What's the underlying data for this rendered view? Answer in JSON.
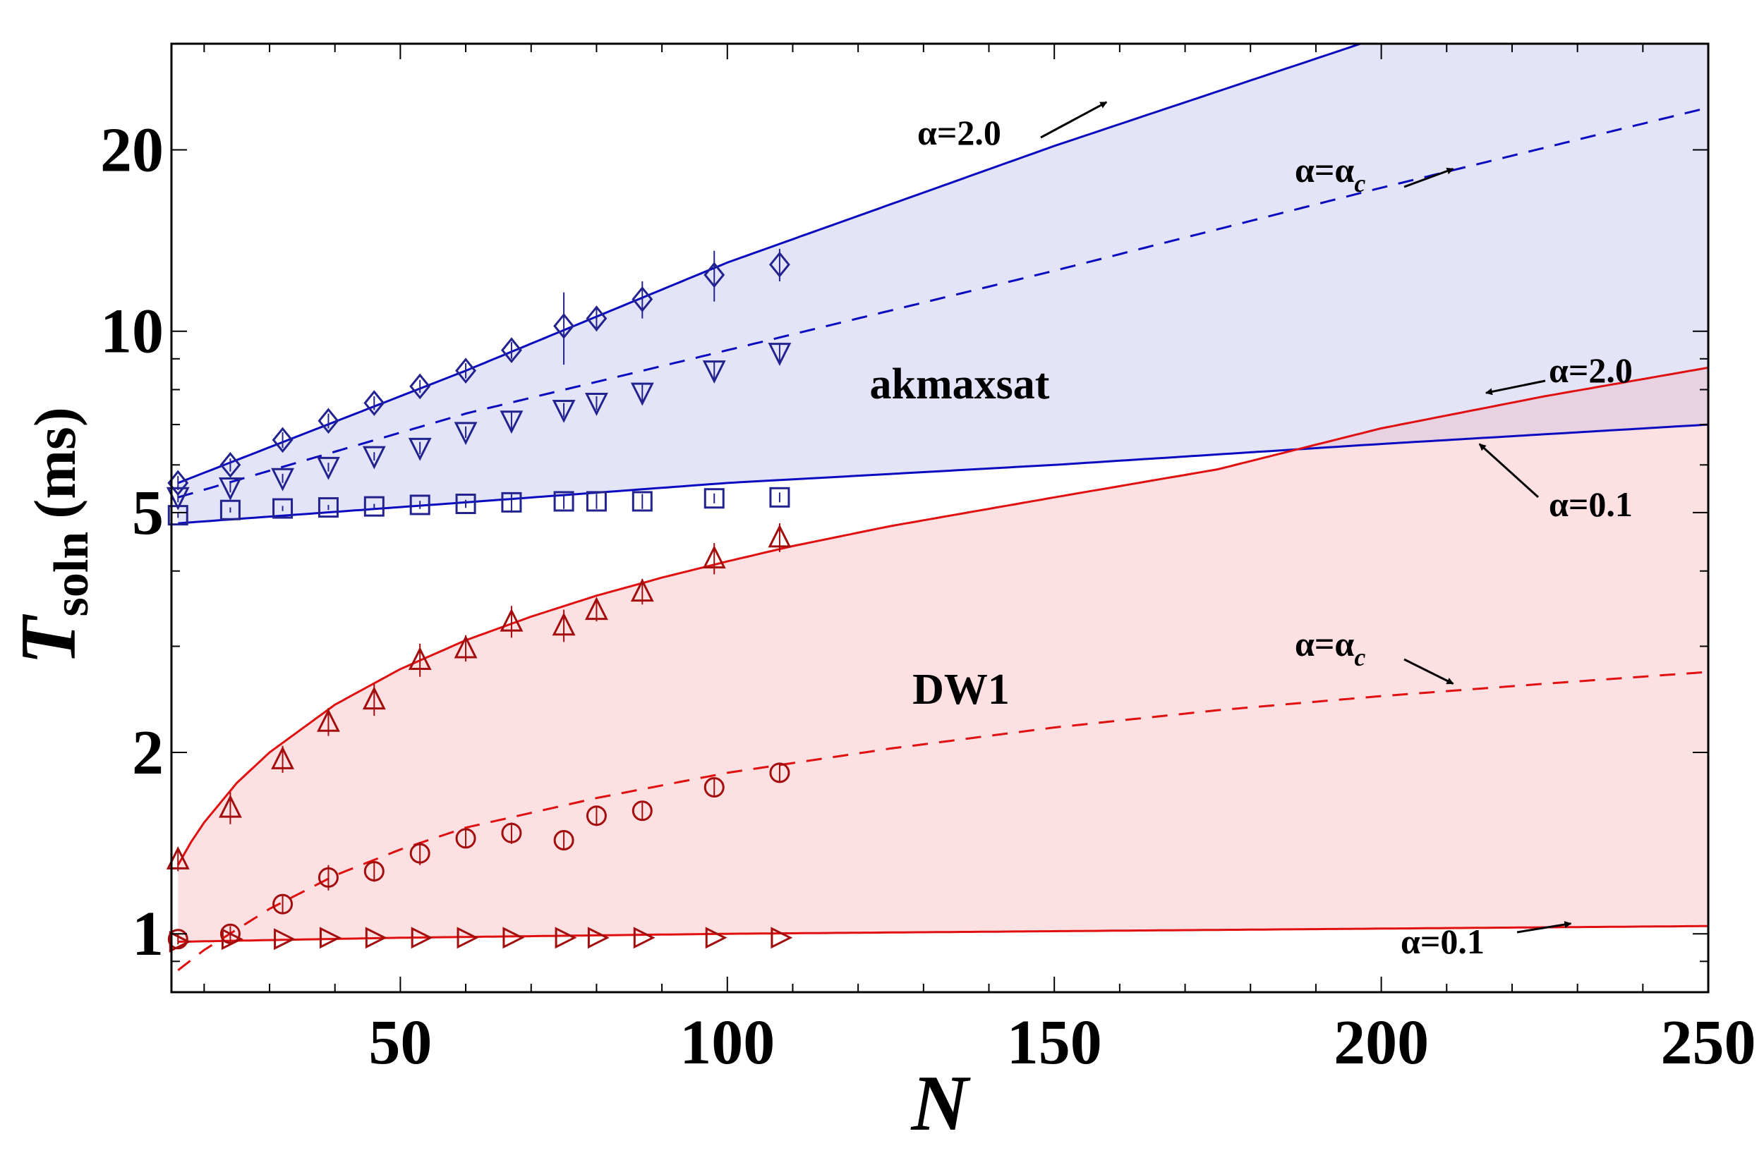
{
  "chart_data": {
    "type": "line",
    "title": "",
    "xlabel": "N",
    "ylabel_main": "T",
    "ylabel_sub": "soln",
    "ylabel_unit": "(ms)",
    "xlim": [
      15,
      250
    ],
    "ylim": [
      0.8,
      30
    ],
    "yscale": "log",
    "grid": false,
    "x_ticks": [
      50,
      100,
      150,
      200,
      250
    ],
    "x_tick_labels": [
      "50",
      "100",
      "150",
      "200",
      "250"
    ],
    "y_ticks": [
      1,
      2,
      5,
      10,
      20
    ],
    "y_tick_labels": [
      "1",
      "2",
      "5",
      "10",
      "20"
    ],
    "band_labels": {
      "akmaxsat": "akmaxsat",
      "dw1": "DW1"
    },
    "colors": {
      "blue": "#0a0ac0",
      "dark_blue": "#23238f",
      "blue_fill": "#e3e4f8",
      "red": "#e01010",
      "dark_red": "#a30d0d",
      "red_fill": "#fde0e2",
      "overlap_fill": "#e8d2e2"
    },
    "fits": [
      {
        "name": "akmaxsat alpha=2.0",
        "x": [
          16,
          60,
          100,
          150,
          200,
          250
        ],
        "y": [
          5.6,
          8.6,
          13.0,
          20.3,
          30.8,
          46.5
        ],
        "style": "solid",
        "color": "blue"
      },
      {
        "name": "akmaxsat alpha=alpha_c",
        "x": [
          16,
          60,
          100,
          150,
          200,
          250
        ],
        "y": [
          5.3,
          7.3,
          9.3,
          12.6,
          17.3,
          23.5
        ],
        "style": "dashed",
        "color": "blue"
      },
      {
        "name": "akmaxsat alpha=0.1",
        "x": [
          16,
          60,
          100,
          150,
          200,
          250
        ],
        "y": [
          4.8,
          5.2,
          5.6,
          6.0,
          6.5,
          7.0
        ],
        "style": "solid",
        "color": "blue"
      },
      {
        "name": "DW1 alpha=2.0",
        "x": [
          16,
          18,
          20,
          25,
          30,
          40,
          50,
          60,
          70,
          80,
          90,
          100,
          110,
          125,
          150,
          175,
          200,
          225,
          250
        ],
        "y": [
          1.3,
          1.42,
          1.53,
          1.78,
          2.0,
          2.4,
          2.75,
          3.07,
          3.36,
          3.64,
          3.9,
          4.15,
          4.4,
          4.75,
          5.3,
          5.9,
          6.9,
          7.8,
          8.7
        ],
        "style": "solid",
        "color": "red"
      },
      {
        "name": "DW1 alpha=alpha_c",
        "x": [
          16,
          20,
          30,
          40,
          50,
          60,
          80,
          100,
          125,
          150,
          175,
          200,
          225,
          250
        ],
        "y": [
          0.87,
          0.94,
          1.1,
          1.25,
          1.38,
          1.5,
          1.68,
          1.85,
          2.03,
          2.2,
          2.35,
          2.48,
          2.6,
          2.72
        ],
        "style": "dashed",
        "color": "red"
      },
      {
        "name": "DW1 alpha=0.1",
        "x": [
          16,
          50,
          100,
          150,
          200,
          250
        ],
        "y": [
          0.97,
          0.985,
          1.0,
          1.01,
          1.02,
          1.03
        ],
        "style": "solid",
        "color": "red"
      }
    ],
    "series": [
      {
        "name": "akmaxsat alpha=2.0",
        "marker": "diamond",
        "color": "dark_blue",
        "x": [
          16,
          24,
          32,
          39,
          46,
          53,
          60,
          67,
          75,
          80,
          87,
          98,
          108
        ],
        "y": [
          5.6,
          6.0,
          6.6,
          7.1,
          7.6,
          8.1,
          8.6,
          9.3,
          10.2,
          10.5,
          11.3,
          12.4,
          12.9
        ],
        "err": [
          0.15,
          0.15,
          0.2,
          0.2,
          0.2,
          0.2,
          0.25,
          0.3,
          1.4,
          0.5,
          0.8,
          1.2,
          0.8
        ]
      },
      {
        "name": "akmaxsat alpha=alpha_c",
        "marker": "triangle-down",
        "color": "dark_blue",
        "x": [
          16,
          24,
          32,
          39,
          46,
          53,
          60,
          67,
          75,
          80,
          87,
          98,
          108
        ],
        "y": [
          5.3,
          5.5,
          5.7,
          5.95,
          6.2,
          6.4,
          6.8,
          7.1,
          7.4,
          7.6,
          7.9,
          8.6,
          9.2
        ],
        "err": [
          0.1,
          0.1,
          0.1,
          0.1,
          0.1,
          0.15,
          0.15,
          0.25,
          0.2,
          0.2,
          0.25,
          0.3,
          0.3
        ]
      },
      {
        "name": "akmaxsat alpha=0.1",
        "marker": "square",
        "color": "dark_blue",
        "x": [
          16,
          24,
          32,
          39,
          46,
          53,
          60,
          67,
          75,
          80,
          87,
          98,
          108
        ],
        "y": [
          4.95,
          5.05,
          5.08,
          5.1,
          5.12,
          5.15,
          5.17,
          5.2,
          5.22,
          5.22,
          5.22,
          5.28,
          5.3
        ],
        "err": [
          0.05,
          0.05,
          0.05,
          0.05,
          0.05,
          0.08,
          0.08,
          0.2,
          0.15,
          0.15,
          0.15,
          0.1,
          0.1
        ]
      },
      {
        "name": "DW1 alpha=2.0",
        "marker": "triangle-up",
        "color": "dark_red",
        "x": [
          16,
          24,
          32,
          39,
          46,
          53,
          60,
          67,
          75,
          80,
          87,
          98,
          108
        ],
        "y": [
          1.33,
          1.62,
          1.95,
          2.25,
          2.45,
          2.85,
          2.98,
          3.3,
          3.25,
          3.45,
          3.7,
          4.2,
          4.55
        ],
        "err": [
          0.06,
          0.1,
          0.1,
          0.12,
          0.15,
          0.18,
          0.15,
          0.2,
          0.2,
          0.15,
          0.18,
          0.25,
          0.25
        ]
      },
      {
        "name": "DW1 alpha=alpha_c",
        "marker": "circle",
        "color": "dark_red",
        "x": [
          16,
          24,
          32,
          39,
          46,
          53,
          60,
          67,
          75,
          80,
          87,
          98,
          108
        ],
        "y": [
          0.98,
          1.0,
          1.12,
          1.24,
          1.27,
          1.36,
          1.44,
          1.47,
          1.43,
          1.57,
          1.6,
          1.75,
          1.85
        ],
        "err": [
          0.02,
          0.03,
          0.04,
          0.06,
          0.05,
          0.06,
          0.05,
          0.06,
          0.05,
          0.06,
          0.05,
          0.06,
          0.07
        ]
      },
      {
        "name": "DW1 alpha=0.1",
        "marker": "triangle-right",
        "color": "dark_red",
        "x": [
          16,
          24,
          32,
          39,
          46,
          53,
          60,
          67,
          75,
          80,
          87,
          98,
          108
        ],
        "y": [
          0.97,
          0.98,
          0.98,
          0.985,
          0.985,
          0.985,
          0.985,
          0.985,
          0.985,
          0.985,
          0.985,
          0.985,
          0.985
        ],
        "err": [
          0,
          0,
          0,
          0,
          0,
          0,
          0,
          0,
          0,
          0,
          0,
          0,
          0
        ]
      }
    ],
    "annotations": [
      {
        "id": "ak-a20",
        "text": "α=2.0",
        "kind": "plain",
        "points_to": [
          158,
          24.0
        ]
      },
      {
        "id": "ak-ac",
        "text": "α=α",
        "sub": "c",
        "kind": "sub",
        "points_to": [
          211,
          18.6
        ]
      },
      {
        "id": "dw-a20",
        "text": "α=2.0",
        "kind": "plain",
        "points_to": [
          216,
          7.9
        ]
      },
      {
        "id": "dw-a01",
        "text": "α=0.1",
        "kind": "plain",
        "points_to": [
          215,
          6.5
        ]
      },
      {
        "id": "dw-ac",
        "text": "α=α",
        "sub": "c",
        "kind": "sub",
        "points_to": [
          211,
          2.6
        ]
      },
      {
        "id": "dw-a01b",
        "text": "α=0.1",
        "kind": "plain",
        "points_to": [
          229,
          1.04
        ]
      }
    ]
  }
}
